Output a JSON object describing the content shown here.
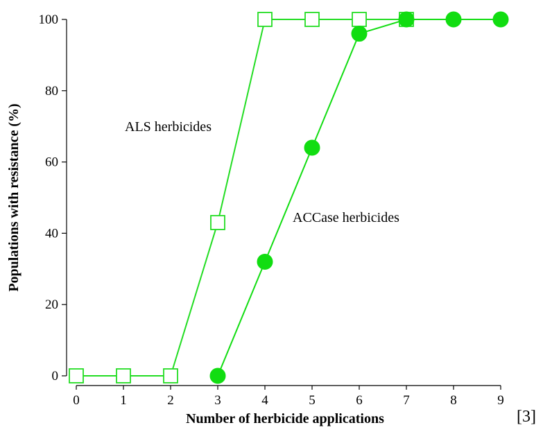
{
  "chart_data": {
    "type": "line",
    "xlabel": "Number of herbicide applications",
    "ylabel": "Populations with resistance (%)",
    "xlim": [
      0,
      9
    ],
    "ylim": [
      0,
      100
    ],
    "x_ticks": [
      "0",
      "1",
      "2",
      "3",
      "4",
      "5",
      "6",
      "7",
      "8",
      "9"
    ],
    "y_ticks": [
      "0",
      "20",
      "40",
      "60",
      "80",
      "100"
    ],
    "grid": false,
    "series": [
      {
        "name": "ALS herbicides",
        "marker": "open-square",
        "color": "#22dd22",
        "x": [
          0,
          1,
          2,
          3,
          4,
          5,
          6,
          7
        ],
        "values": [
          0,
          0,
          0,
          43,
          100,
          100,
          100,
          100
        ]
      },
      {
        "name": "ACCase herbicides",
        "marker": "filled-circle",
        "color": "#11dd11",
        "x": [
          3,
          4,
          5,
          6,
          7,
          8,
          9
        ],
        "values": [
          0,
          32,
          64,
          96,
          100,
          100,
          100
        ]
      }
    ],
    "annotations": [
      "ALS herbicides",
      "ACCase herbicides"
    ]
  },
  "reference": "[3]"
}
